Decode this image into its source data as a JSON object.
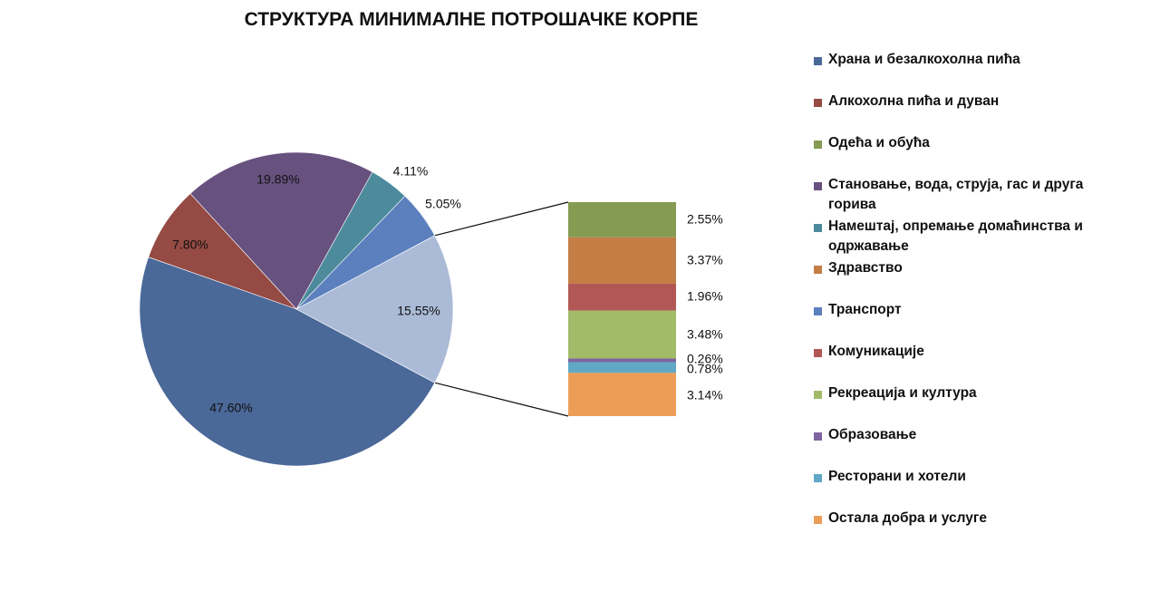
{
  "chart_data": {
    "type": "pie",
    "title": "СТРУКТУРА МИНИМАЛНЕ ПОТРОШАЧКЕ КОРПЕ",
    "pie_slices": [
      {
        "name": "Храна и безалкохолна пића",
        "value": 47.6,
        "label": "47.60%",
        "color": "#4a6898"
      },
      {
        "name": "Алкохолна пића и дуван",
        "value": 7.8,
        "label": "7.80%",
        "color": "#954a44"
      },
      {
        "name": "Становање, вода, струја, гас и друга горива",
        "value": 19.89,
        "label": "19.89%",
        "color": "#67517f"
      },
      {
        "name": "Намештај, опремање домаћинства и одржавање",
        "value": 4.11,
        "label": "4.11%",
        "color": "#4c8a9c"
      },
      {
        "name": "Транспорт",
        "value": 5.05,
        "label": "5.05%",
        "color": "#5c80be"
      },
      {
        "name": "",
        "value": 15.55,
        "label": "15.55%",
        "color": "#abbbd7"
      }
    ],
    "bar_segments": [
      {
        "name": "Одећа и обућа",
        "value": 2.55,
        "label": "2.55%",
        "color": "#859b52"
      },
      {
        "name": "Здравство",
        "value": 3.37,
        "label": "3.37%",
        "color": "#c47d45"
      },
      {
        "name": "Комуникације",
        "value": 1.96,
        "label": "1.96%",
        "color": "#b15855"
      },
      {
        "name": "Рекреација и култура",
        "value": 3.48,
        "label": "3.48%",
        "color": "#a2bb68"
      },
      {
        "name": "Образовање",
        "value": 0.26,
        "label": "0.26%",
        "color": "#7e64a1"
      },
      {
        "name": "Ресторани и хотели",
        "value": 0.78,
        "label": "0.78%",
        "color": "#5fa8c6"
      },
      {
        "name": "Остала добра и услуге",
        "value": 3.14,
        "label": "3.14%",
        "color": "#ec9e59"
      }
    ],
    "legend": [
      {
        "label": "Храна и безалкохолна пића",
        "color": "#4a6898"
      },
      {
        "label": "Алкохолна пића и дуван",
        "color": "#954a44"
      },
      {
        "label": "Одећа и обућа",
        "color": "#859b52"
      },
      {
        "label": "Становање, вода, струја, гас и друга горива",
        "color": "#67517f"
      },
      {
        "label": "Намештај, опремање домаћинства и одржавање",
        "color": "#4c8a9c"
      },
      {
        "label": "Здравство",
        "color": "#c47d45"
      },
      {
        "label": "Транспорт",
        "color": "#5c80be"
      },
      {
        "label": "Комуникације",
        "color": "#b15855"
      },
      {
        "label": "Рекреација и култура",
        "color": "#a2bb68"
      },
      {
        "label": "Образовање",
        "color": "#7e64a1"
      },
      {
        "label": "Ресторани и хотели",
        "color": "#5fa8c6"
      },
      {
        "label": "Остала добра и услуге",
        "color": "#ec9e59"
      }
    ],
    "legend_placement": "right"
  }
}
